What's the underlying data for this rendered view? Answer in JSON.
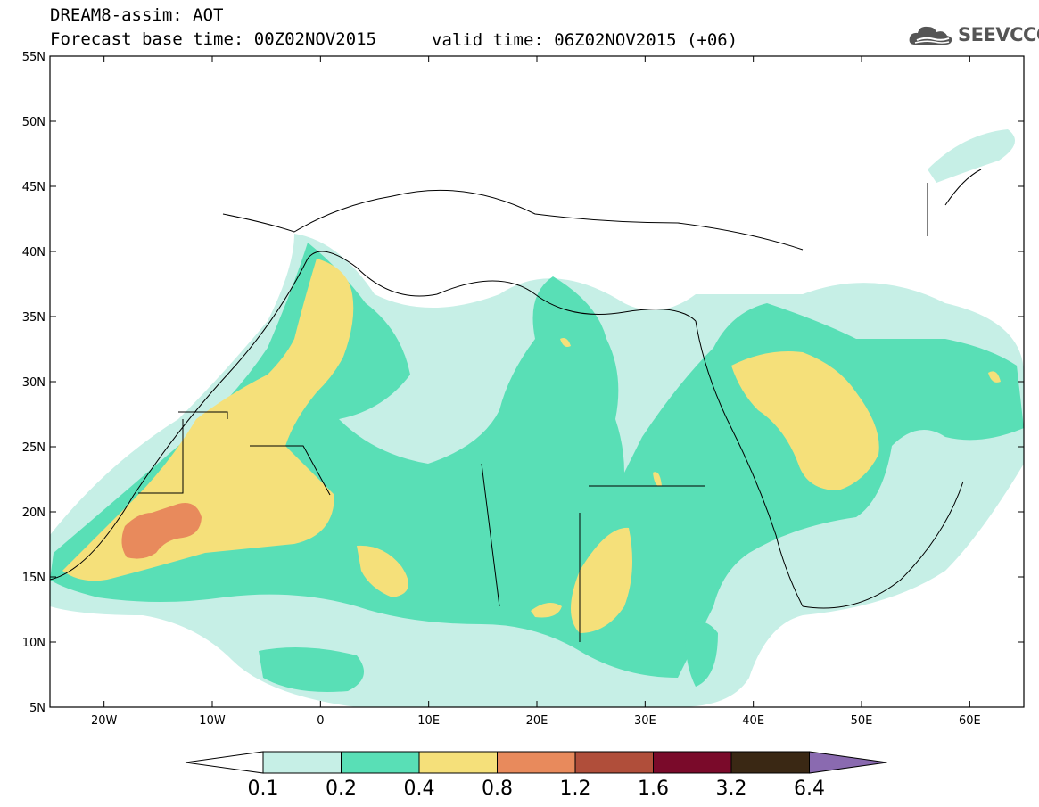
{
  "header": {
    "title": "DREAM8-assim: AOT",
    "base_time": "Forecast base time: 00Z02NOV2015",
    "valid_time": "valid time: 06Z02NOV2015 (+06)",
    "logo_text": "SEEVCCC"
  },
  "map": {
    "lon_range": [
      -25,
      65
    ],
    "lat_range": [
      5,
      55
    ],
    "lat_ticks": [
      "55N",
      "50N",
      "45N",
      "40N",
      "35N",
      "30N",
      "25N",
      "20N",
      "15N",
      "10N",
      "5N"
    ],
    "lon_ticks": [
      "20W",
      "10W",
      "0",
      "10E",
      "20E",
      "30E",
      "40E",
      "50E",
      "60E"
    ]
  },
  "colorbar": {
    "labels": [
      "0.1",
      "0.2",
      "0.4",
      "0.8",
      "1.2",
      "1.6",
      "3.2",
      "6.4"
    ],
    "colors": [
      "#ffffff",
      "#c6efe6",
      "#59dfb6",
      "#f5e07a",
      "#e88a5c",
      "#b04e3a",
      "#7a0a2a",
      "#3a2814",
      "#8a6ab0"
    ]
  }
}
